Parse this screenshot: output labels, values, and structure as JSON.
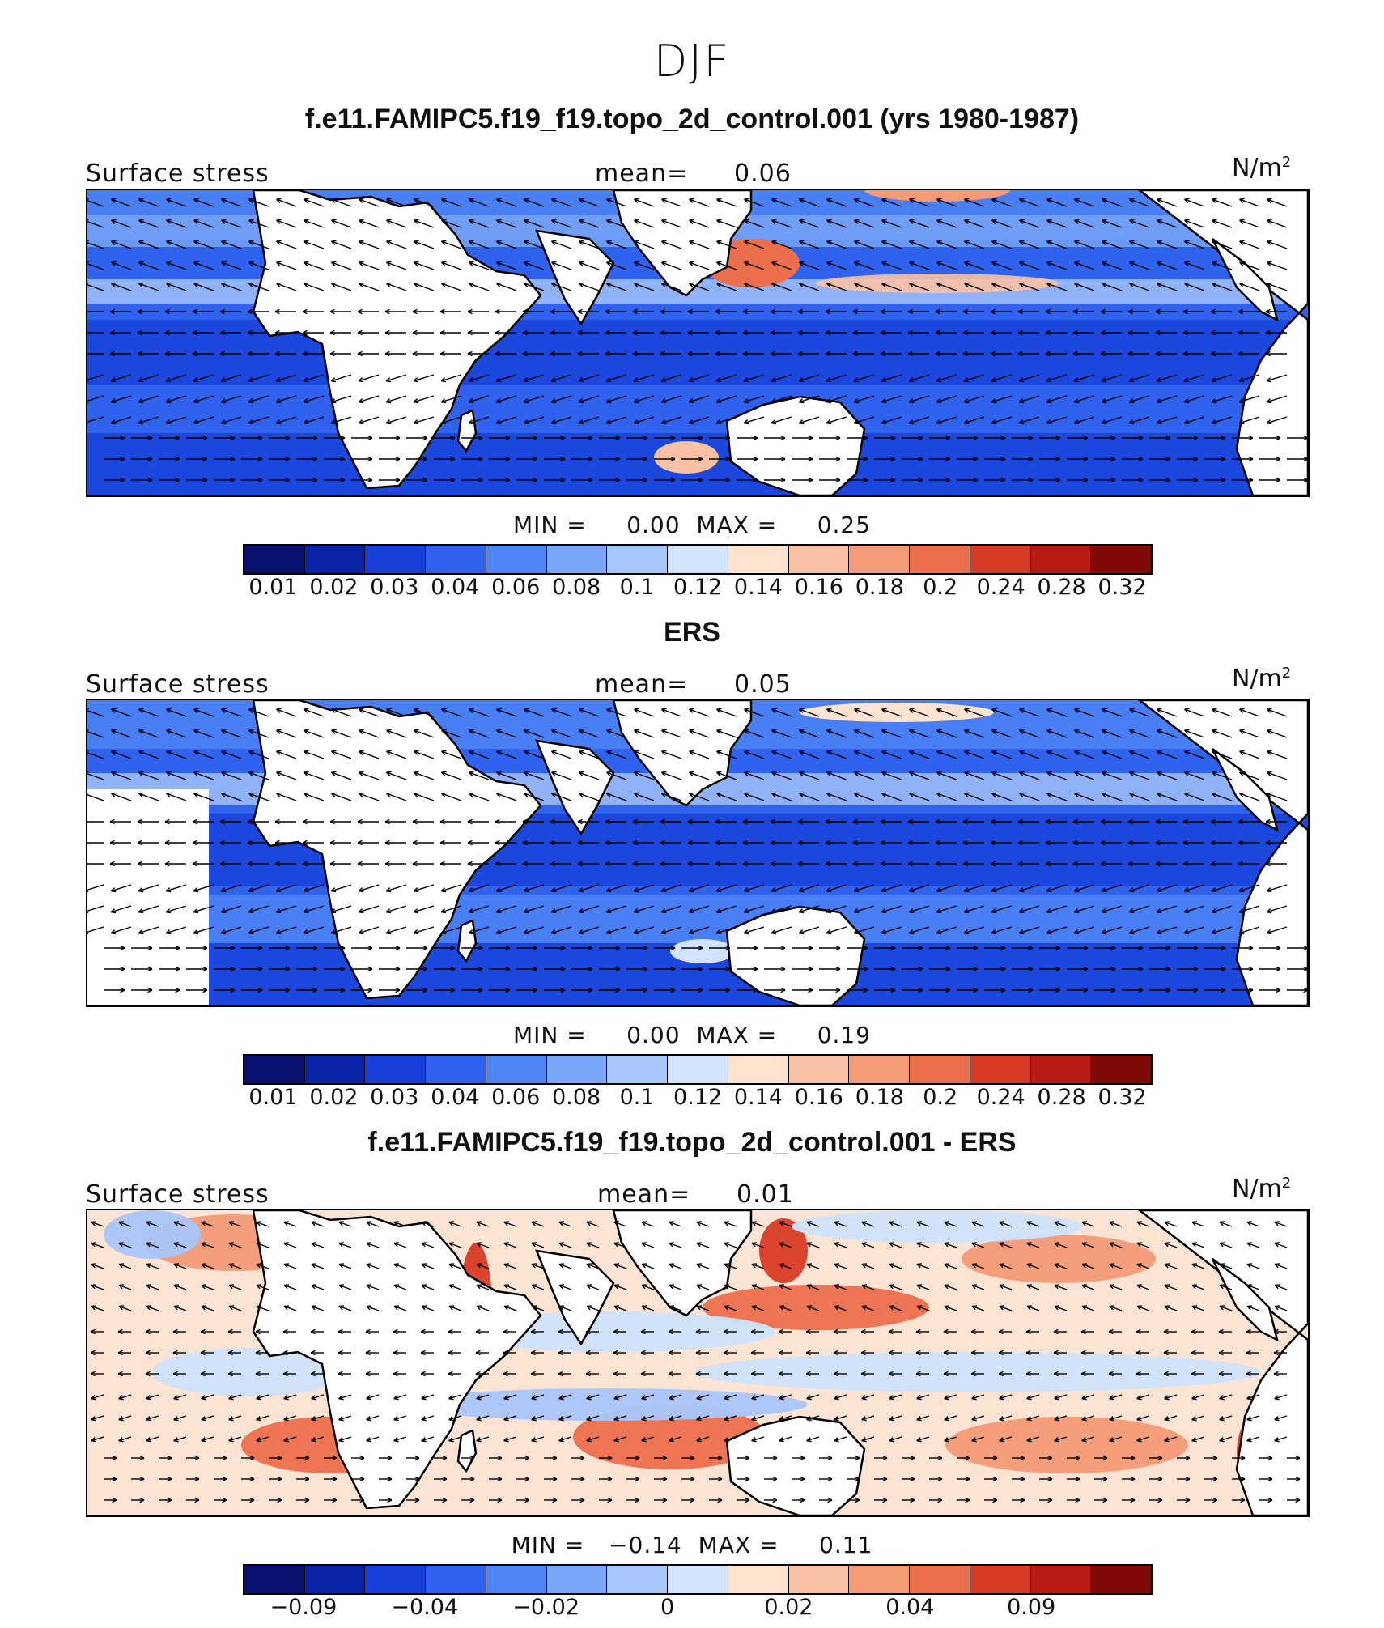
{
  "title": "DJF",
  "panels": [
    {
      "heading": "f.e11.FAMIPC5.f19_f19.topo_2d_control.001 (yrs 1980-1987)",
      "variable": "Surface stress",
      "mean_label": "mean=",
      "mean_value": "0.06",
      "units_base": "N/m",
      "units_sup": "2",
      "min_label": "MIN =",
      "min_value": "0.00",
      "max_label": "MAX =",
      "max_value": "0.25",
      "colorbar_ticks": [
        "0.01",
        "0.02",
        "0.03",
        "0.04",
        "0.06",
        "0.08",
        "0.1",
        "0.12",
        "0.14",
        "0.16",
        "0.18",
        "0.2",
        "0.24",
        "0.28",
        "0.32"
      ],
      "field": "model"
    },
    {
      "heading": "ERS",
      "variable": "Surface stress",
      "mean_label": "mean=",
      "mean_value": "0.05",
      "units_base": "N/m",
      "units_sup": "2",
      "min_label": "MIN =",
      "min_value": "0.00",
      "max_label": "MAX =",
      "max_value": "0.19",
      "colorbar_ticks": [
        "0.01",
        "0.02",
        "0.03",
        "0.04",
        "0.06",
        "0.08",
        "0.1",
        "0.12",
        "0.14",
        "0.16",
        "0.18",
        "0.2",
        "0.24",
        "0.28",
        "0.32"
      ],
      "field": "obs"
    },
    {
      "heading": "f.e11.FAMIPC5.f19_f19.topo_2d_control.001 - ERS",
      "variable": "Surface stress",
      "mean_label": "mean=",
      "mean_value": "0.01",
      "units_base": "N/m",
      "units_sup": "2",
      "min_label": "MIN =",
      "min_value": "−0.14",
      "max_label": "MAX =",
      "max_value": "0.11",
      "colorbar_ticks": [
        "−0.09",
        "",
        "−0.04",
        "",
        "−0.02",
        "",
        "0",
        "",
        "0.02",
        "",
        "0.04",
        "",
        "0.09"
      ],
      "field": "diff"
    }
  ],
  "colors": [
    "#08106e",
    "#0a24a8",
    "#1840d8",
    "#2f63ee",
    "#4f86f5",
    "#7aa6f8",
    "#a9c6fa",
    "#d3e3fb",
    "#fde3d0",
    "#f9c1a4",
    "#f39a76",
    "#ec6f4c",
    "#d83b24",
    "#b51b12",
    "#800a05"
  ]
}
